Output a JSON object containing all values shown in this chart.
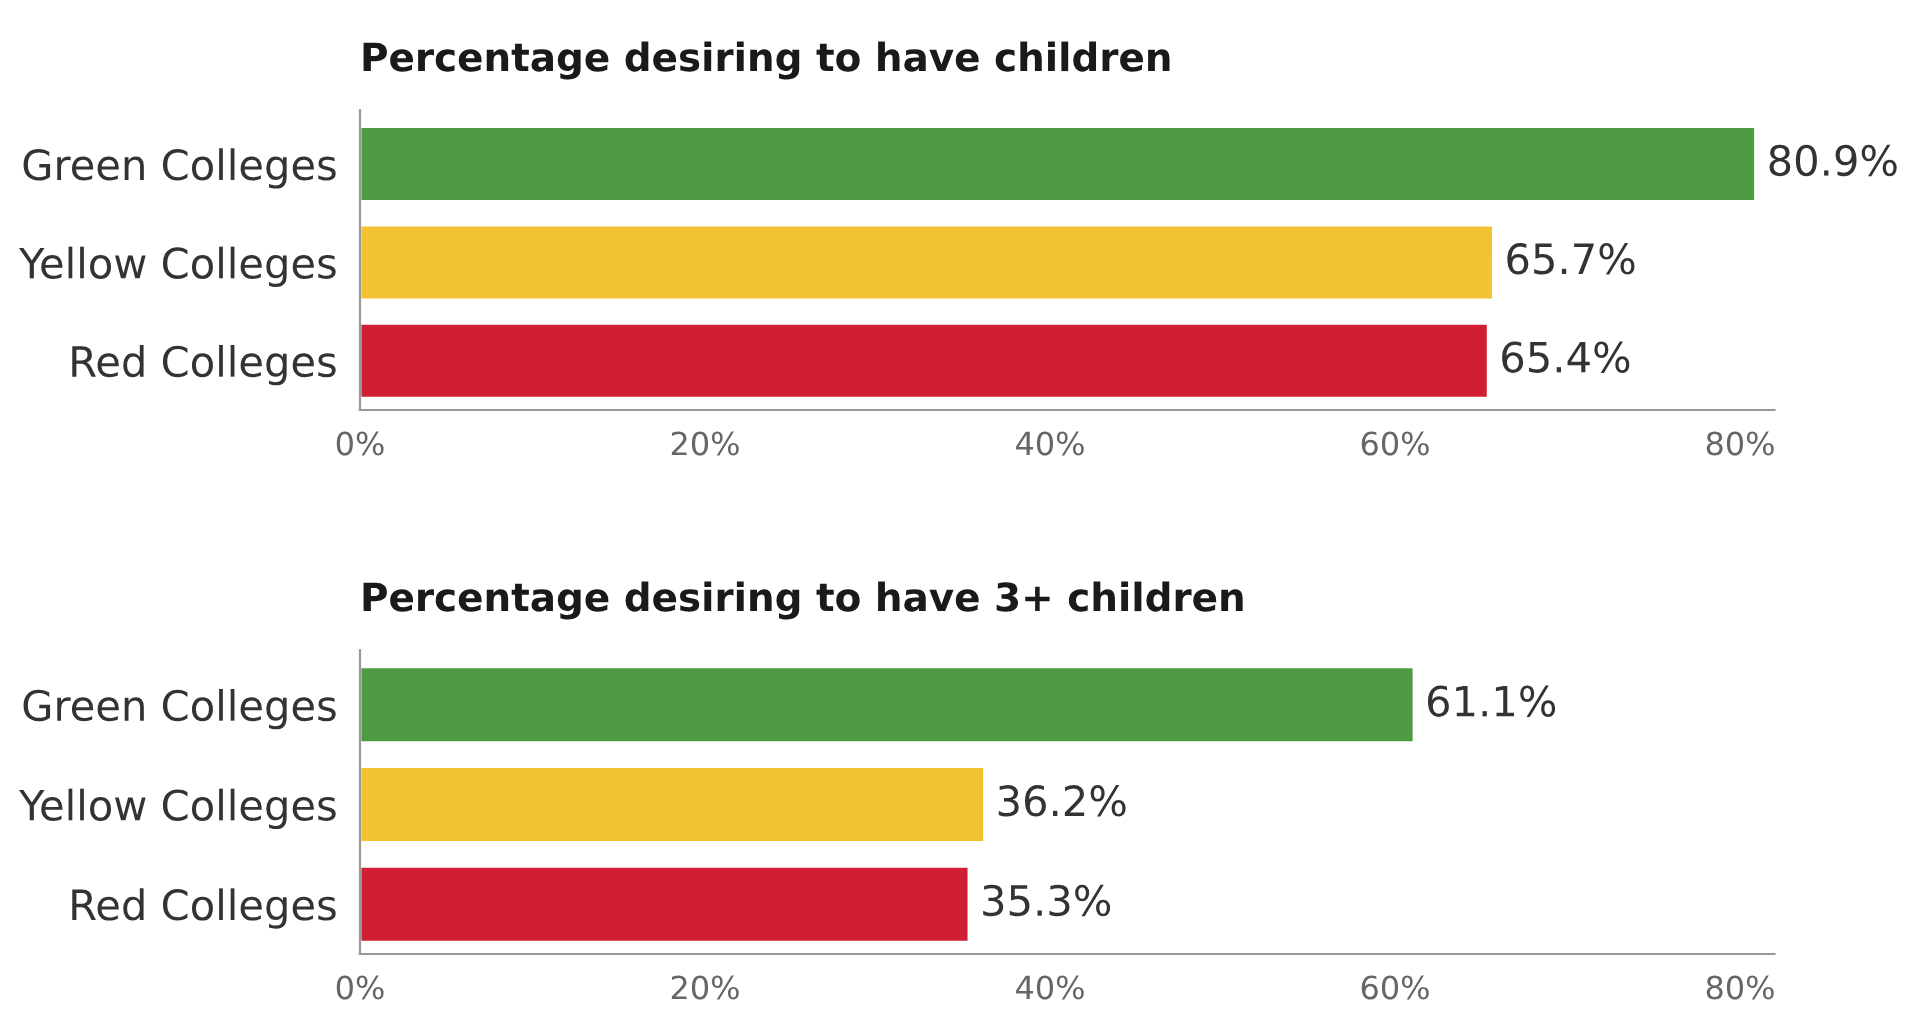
{
  "chart_data": [
    {
      "type": "bar",
      "orientation": "horizontal",
      "title": "Percentage desiring to have children",
      "categories": [
        "Green Colleges",
        "Yellow Colleges",
        "Red Colleges"
      ],
      "values": [
        80.9,
        65.7,
        65.4
      ],
      "colors": [
        "#4f9b44",
        "#f2c232",
        "#d01f32"
      ],
      "value_labels": [
        "80.9%",
        "65.7%",
        "65.4%"
      ],
      "xlim": [
        0,
        82
      ],
      "xticks": [
        {
          "value": 0,
          "label": "0%"
        },
        {
          "value": 20,
          "label": "20%"
        },
        {
          "value": 40,
          "label": "40%"
        },
        {
          "value": 60,
          "label": "60%"
        },
        {
          "value": 80,
          "label": "80%"
        }
      ],
      "grid": false,
      "legend": false
    },
    {
      "type": "bar",
      "orientation": "horizontal",
      "title": "Percentage desiring to have 3+ children",
      "categories": [
        "Green Colleges",
        "Yellow Colleges",
        "Red Colleges"
      ],
      "values": [
        61.1,
        36.2,
        35.3
      ],
      "colors": [
        "#4f9b44",
        "#f2c232",
        "#d01f32"
      ],
      "value_labels": [
        "61.1%",
        "36.2%",
        "35.3%"
      ],
      "xlim": [
        0,
        82
      ],
      "xticks": [
        {
          "value": 0,
          "label": "0%"
        },
        {
          "value": 20,
          "label": "20%"
        },
        {
          "value": 40,
          "label": "40%"
        },
        {
          "value": 60,
          "label": "60%"
        },
        {
          "value": 80,
          "label": "80%"
        }
      ],
      "grid": false,
      "legend": false
    }
  ]
}
